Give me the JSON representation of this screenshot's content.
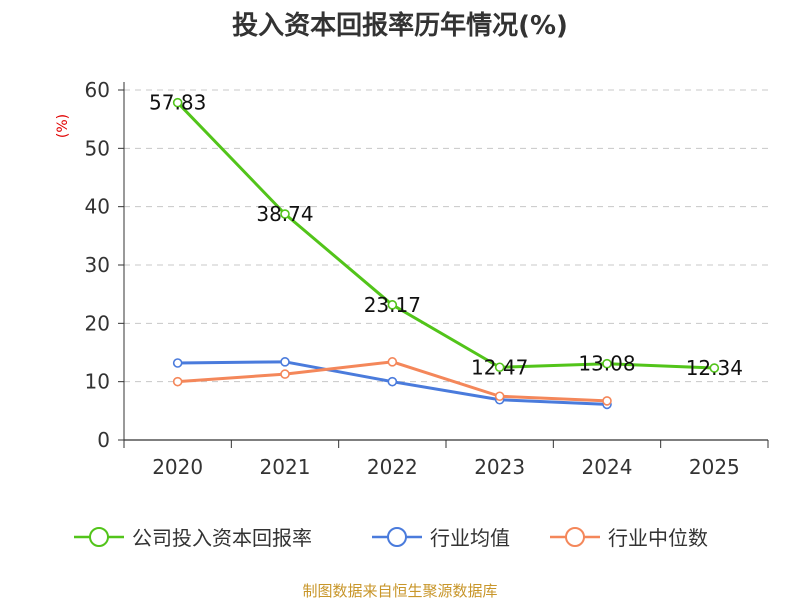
{
  "chart_data": {
    "type": "line",
    "title": "投入资本回报率历年情况(%)",
    "ylabel": "(%)",
    "xlabel": "",
    "categories": [
      "2020",
      "2021",
      "2022",
      "2023",
      "2024",
      "2025"
    ],
    "ylim": [
      0,
      60
    ],
    "yticks": [
      0,
      10,
      20,
      30,
      40,
      50,
      60
    ],
    "grid": true,
    "legend_position": "bottom",
    "series": [
      {
        "name": "公司投入资本回报率",
        "color": "#52c41a",
        "values": [
          57.83,
          38.74,
          23.17,
          12.47,
          13.08,
          12.34
        ],
        "labels": [
          "57.83",
          "38.74",
          "23.17",
          "12.47",
          "13.08",
          "12.34"
        ]
      },
      {
        "name": "行业均值",
        "color": "#4a7bdc",
        "values": [
          13.2,
          13.4,
          10.0,
          6.9,
          6.1,
          null
        ]
      },
      {
        "name": "行业中位数",
        "color": "#f4875a",
        "values": [
          10.0,
          11.3,
          13.4,
          7.5,
          6.7,
          null
        ]
      }
    ]
  },
  "source": "制图数据来自恒生聚源数据库"
}
